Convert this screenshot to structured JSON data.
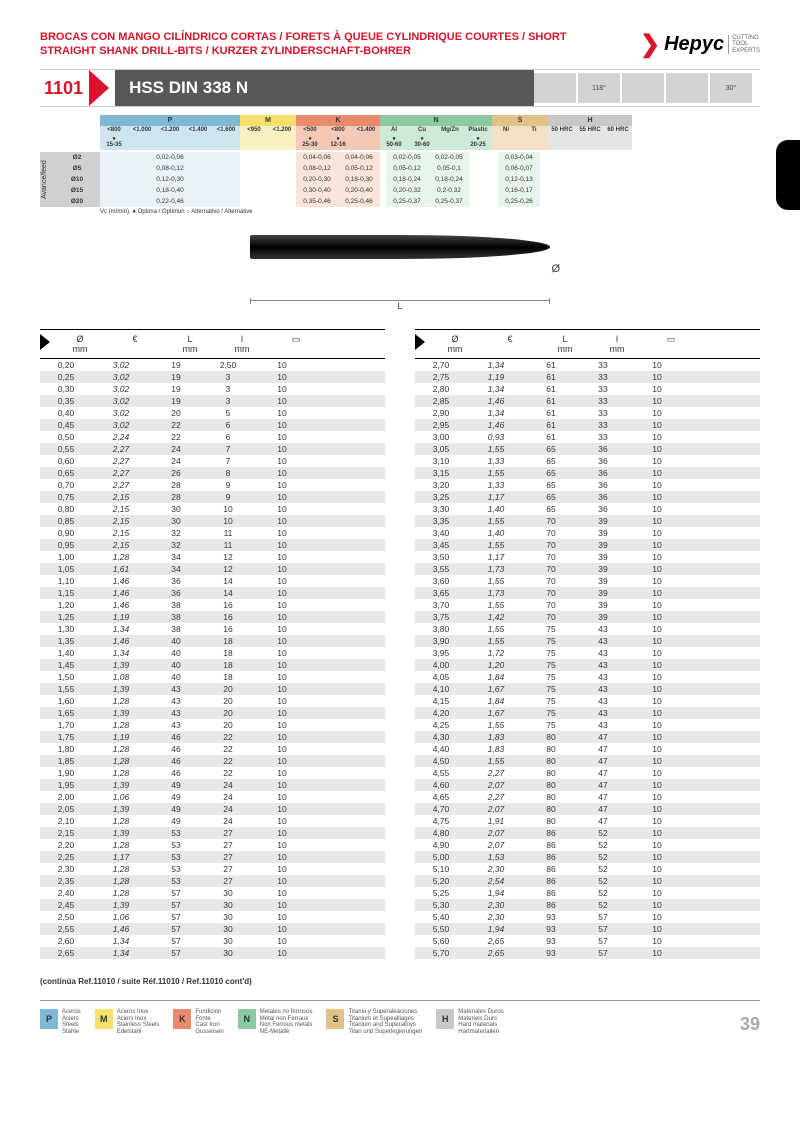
{
  "header": {
    "title": "BROCAS CON MANGO CILÍNDRICO CORTAS / FORETS À QUEUE CYLINDRIQUE COURTES / SHORT STRAIGHT SHANK DRILL-BITS / KURZER ZYLINDERSCHAFT-BOHRER",
    "logo": "Hepyc",
    "tagline": "CUTTING\nTOOL\nEXPERTS"
  },
  "product": {
    "code": "1101",
    "name": "HSS DIN 338 N",
    "angle1": "118°",
    "angle2": "30°"
  },
  "materials": {
    "groups": [
      "P",
      "M",
      "K",
      "N",
      "S",
      "H"
    ],
    "subP": [
      "<800",
      "<1.000",
      "<1.200",
      "<1.400",
      "<1.600"
    ],
    "subM": [
      "<950",
      "<1.200"
    ],
    "subK": [
      "<500",
      "<800",
      "<1.400"
    ],
    "subN": [
      "Al",
      "Cu",
      "Mg/Zn",
      "Plastic"
    ],
    "subS": [
      "Ni",
      "Ti"
    ],
    "subH": [
      "50 HRC",
      "55 HRC",
      "60 HRC"
    ],
    "vc": [
      "15-35",
      "",
      "",
      "",
      "",
      "",
      "",
      "25-30",
      "12-16",
      "",
      "50-60",
      "30-60",
      "",
      "20-25",
      "",
      "",
      "",
      "",
      ""
    ]
  },
  "feed": {
    "label": "Avance/feed",
    "rows": [
      {
        "d": "Ø2",
        "v": "0,02-0,06",
        "k1": "0,04-0,06",
        "k2": "0,04-0,06",
        "n1": "0,02-0,05",
        "n2": "0,02-0,05",
        "n4": "0,03-0,04"
      },
      {
        "d": "Ø5",
        "v": "0,08-0,12",
        "k1": "0,08-0,12",
        "k2": "0,05-0,12",
        "n1": "0,05-0,12",
        "n2": "0,05-0,1",
        "n4": "0,06-0,07"
      },
      {
        "d": "Ø10",
        "v": "0,12-0,30",
        "k1": "0,20-0,30",
        "k2": "0,18-0,30",
        "n1": "0,18-0,24",
        "n2": "0,18-0,24",
        "n4": "0,12-0,13"
      },
      {
        "d": "Ø15",
        "v": "0,18-0,40",
        "k1": "0,30-0,40",
        "k2": "0,20-0,40",
        "n1": "0,20-0,32",
        "n2": "0,2-0,32",
        "n4": "0,16-0,17"
      },
      {
        "d": "Ø20",
        "v": "0,22-0,46",
        "k1": "0,35-0,46",
        "k2": "0,25-0,46",
        "n1": "0,25-0,37",
        "n2": "0,25-0,37",
        "n4": "0,25-0,26"
      }
    ],
    "note": "Vc (m/min). ● Optima / Optimun  ○ Alternativo / Alternative"
  },
  "diagram": {
    "l": "l",
    "L": "L",
    "d": "Ø"
  },
  "tableHeaders": {
    "c1": "Ø\nmm",
    "c2": "€",
    "c3": "L\nmm",
    "c4": "l\nmm",
    "c5": "□"
  },
  "table1": [
    [
      "0,20",
      "3,02",
      "19",
      "2,50",
      "10"
    ],
    [
      "0,25",
      "3,02",
      "19",
      "3",
      "10"
    ],
    [
      "0,30",
      "3,02",
      "19",
      "3",
      "10"
    ],
    [
      "0,35",
      "3,02",
      "19",
      "3",
      "10"
    ],
    [
      "0,40",
      "3,02",
      "20",
      "5",
      "10"
    ],
    [
      "0,45",
      "3,02",
      "22",
      "6",
      "10"
    ],
    [
      "0,50",
      "2,24",
      "22",
      "6",
      "10"
    ],
    [
      "0,55",
      "2,27",
      "24",
      "7",
      "10"
    ],
    [
      "0,60",
      "2,27",
      "24",
      "7",
      "10"
    ],
    [
      "0,65",
      "2,27",
      "26",
      "8",
      "10"
    ],
    [
      "0,70",
      "2,27",
      "28",
      "9",
      "10"
    ],
    [
      "0,75",
      "2,15",
      "28",
      "9",
      "10"
    ],
    [
      "0,80",
      "2,15",
      "30",
      "10",
      "10"
    ],
    [
      "0,85",
      "2,15",
      "30",
      "10",
      "10"
    ],
    [
      "0,90",
      "2,15",
      "32",
      "11",
      "10"
    ],
    [
      "0,95",
      "2,15",
      "32",
      "11",
      "10"
    ],
    [
      "1,00",
      "1,28",
      "34",
      "12",
      "10"
    ],
    [
      "1,05",
      "1,61",
      "34",
      "12",
      "10"
    ],
    [
      "1,10",
      "1,46",
      "36",
      "14",
      "10"
    ],
    [
      "1,15",
      "1,46",
      "36",
      "14",
      "10"
    ],
    [
      "1,20",
      "1,46",
      "38",
      "16",
      "10"
    ],
    [
      "1,25",
      "1,19",
      "38",
      "16",
      "10"
    ],
    [
      "1,30",
      "1,34",
      "38",
      "16",
      "10"
    ],
    [
      "1,35",
      "1,46",
      "40",
      "18",
      "10"
    ],
    [
      "1,40",
      "1,34",
      "40",
      "18",
      "10"
    ],
    [
      "1,45",
      "1,39",
      "40",
      "18",
      "10"
    ],
    [
      "1,50",
      "1,08",
      "40",
      "18",
      "10"
    ],
    [
      "1,55",
      "1,39",
      "43",
      "20",
      "10"
    ],
    [
      "1,60",
      "1,28",
      "43",
      "20",
      "10"
    ],
    [
      "1,65",
      "1,39",
      "43",
      "20",
      "10"
    ],
    [
      "1,70",
      "1,28",
      "43",
      "20",
      "10"
    ],
    [
      "1,75",
      "1,19",
      "46",
      "22",
      "10"
    ],
    [
      "1,80",
      "1,28",
      "46",
      "22",
      "10"
    ],
    [
      "1,85",
      "1,28",
      "46",
      "22",
      "10"
    ],
    [
      "1,90",
      "1,28",
      "46",
      "22",
      "10"
    ],
    [
      "1,95",
      "1,39",
      "49",
      "24",
      "10"
    ],
    [
      "2,00",
      "1,06",
      "49",
      "24",
      "10"
    ],
    [
      "2,05",
      "1,39",
      "49",
      "24",
      "10"
    ],
    [
      "2,10",
      "1,28",
      "49",
      "24",
      "10"
    ],
    [
      "2,15",
      "1,39",
      "53",
      "27",
      "10"
    ],
    [
      "2,20",
      "1,28",
      "53",
      "27",
      "10"
    ],
    [
      "2,25",
      "1,17",
      "53",
      "27",
      "10"
    ],
    [
      "2,30",
      "1,28",
      "53",
      "27",
      "10"
    ],
    [
      "2,35",
      "1,28",
      "53",
      "27",
      "10"
    ],
    [
      "2,40",
      "1,28",
      "57",
      "30",
      "10"
    ],
    [
      "2,45",
      "1,39",
      "57",
      "30",
      "10"
    ],
    [
      "2,50",
      "1,06",
      "57",
      "30",
      "10"
    ],
    [
      "2,55",
      "1,46",
      "57",
      "30",
      "10"
    ],
    [
      "2,60",
      "1,34",
      "57",
      "30",
      "10"
    ],
    [
      "2,65",
      "1,34",
      "57",
      "30",
      "10"
    ]
  ],
  "table2": [
    [
      "2,70",
      "1,34",
      "61",
      "33",
      "10"
    ],
    [
      "2,75",
      "1,19",
      "61",
      "33",
      "10"
    ],
    [
      "2,80",
      "1,34",
      "61",
      "33",
      "10"
    ],
    [
      "2,85",
      "1,46",
      "61",
      "33",
      "10"
    ],
    [
      "2,90",
      "1,34",
      "61",
      "33",
      "10"
    ],
    [
      "2,95",
      "1,46",
      "61",
      "33",
      "10"
    ],
    [
      "3,00",
      "0,93",
      "61",
      "33",
      "10"
    ],
    [
      "3,05",
      "1,55",
      "65",
      "36",
      "10"
    ],
    [
      "3,10",
      "1,33",
      "65",
      "36",
      "10"
    ],
    [
      "3,15",
      "1,55",
      "65",
      "36",
      "10"
    ],
    [
      "3,20",
      "1,33",
      "65",
      "36",
      "10"
    ],
    [
      "3,25",
      "1,17",
      "65",
      "36",
      "10"
    ],
    [
      "3,30",
      "1,40",
      "65",
      "36",
      "10"
    ],
    [
      "3,35",
      "1,55",
      "70",
      "39",
      "10"
    ],
    [
      "3,40",
      "1,40",
      "70",
      "39",
      "10"
    ],
    [
      "3,45",
      "1,55",
      "70",
      "39",
      "10"
    ],
    [
      "3,50",
      "1,17",
      "70",
      "39",
      "10"
    ],
    [
      "3,55",
      "1,73",
      "70",
      "39",
      "10"
    ],
    [
      "3,60",
      "1,55",
      "70",
      "39",
      "10"
    ],
    [
      "3,65",
      "1,73",
      "70",
      "39",
      "10"
    ],
    [
      "3,70",
      "1,55",
      "70",
      "39",
      "10"
    ],
    [
      "3,75",
      "1,42",
      "70",
      "39",
      "10"
    ],
    [
      "3,80",
      "1,55",
      "75",
      "43",
      "10"
    ],
    [
      "3,90",
      "1,55",
      "75",
      "43",
      "10"
    ],
    [
      "3,95",
      "1,72",
      "75",
      "43",
      "10"
    ],
    [
      "4,00",
      "1,20",
      "75",
      "43",
      "10"
    ],
    [
      "4,05",
      "1,84",
      "75",
      "43",
      "10"
    ],
    [
      "4,10",
      "1,67",
      "75",
      "43",
      "10"
    ],
    [
      "4,15",
      "1,84",
      "75",
      "43",
      "10"
    ],
    [
      "4,20",
      "1,67",
      "75",
      "43",
      "10"
    ],
    [
      "4,25",
      "1,55",
      "75",
      "43",
      "10"
    ],
    [
      "4,30",
      "1,83",
      "80",
      "47",
      "10"
    ],
    [
      "4,40",
      "1,83",
      "80",
      "47",
      "10"
    ],
    [
      "4,50",
      "1,55",
      "80",
      "47",
      "10"
    ],
    [
      "4,55",
      "2,27",
      "80",
      "47",
      "10"
    ],
    [
      "4,60",
      "2,07",
      "80",
      "47",
      "10"
    ],
    [
      "4,65",
      "2,27",
      "80",
      "47",
      "10"
    ],
    [
      "4,70",
      "2,07",
      "80",
      "47",
      "10"
    ],
    [
      "4,75",
      "1,91",
      "80",
      "47",
      "10"
    ],
    [
      "4,80",
      "2,07",
      "86",
      "52",
      "10"
    ],
    [
      "4,90",
      "2,07",
      "86",
      "52",
      "10"
    ],
    [
      "5,00",
      "1,53",
      "86",
      "52",
      "10"
    ],
    [
      "5,10",
      "2,30",
      "86",
      "52",
      "10"
    ],
    [
      "5,20",
      "2,54",
      "86",
      "52",
      "10"
    ],
    [
      "5,25",
      "1,94",
      "86",
      "52",
      "10"
    ],
    [
      "5,30",
      "2,30",
      "86",
      "52",
      "10"
    ],
    [
      "5,40",
      "2,30",
      "93",
      "57",
      "10"
    ],
    [
      "5,50",
      "1,94",
      "93",
      "57",
      "10"
    ],
    [
      "5,60",
      "2,65",
      "93",
      "57",
      "10"
    ],
    [
      "5,70",
      "2,65",
      "93",
      "57",
      "10"
    ]
  ],
  "contNote": "(continúa Ref.11010 / suite Réf.11010 / Ref.11010 cont'd)",
  "matLegend": [
    {
      "k": "P",
      "t": "Aceros\nAciers\nSteels\nStähle"
    },
    {
      "k": "M",
      "t": "Aceros Inox\nAciers Inox\nStainless Steels\nEdelstahl"
    },
    {
      "k": "K",
      "t": "Fundicion\nFonte\nCast Iron\nGusseisen"
    },
    {
      "k": "N",
      "t": "Metales no ferrosos\nMétal non Ferraux\nNon Ferrous metals\nNE-Metalle"
    },
    {
      "k": "S",
      "t": "Titanio y Superaleaciones\nTitanium et Supealliages\nTitanium and Superalloys\nTitan und Superlegierungen"
    },
    {
      "k": "H",
      "t": "Materiales Duros\nMateriels Durs\nHard materials\nHartmaterialien"
    }
  ],
  "pageNum": "39"
}
